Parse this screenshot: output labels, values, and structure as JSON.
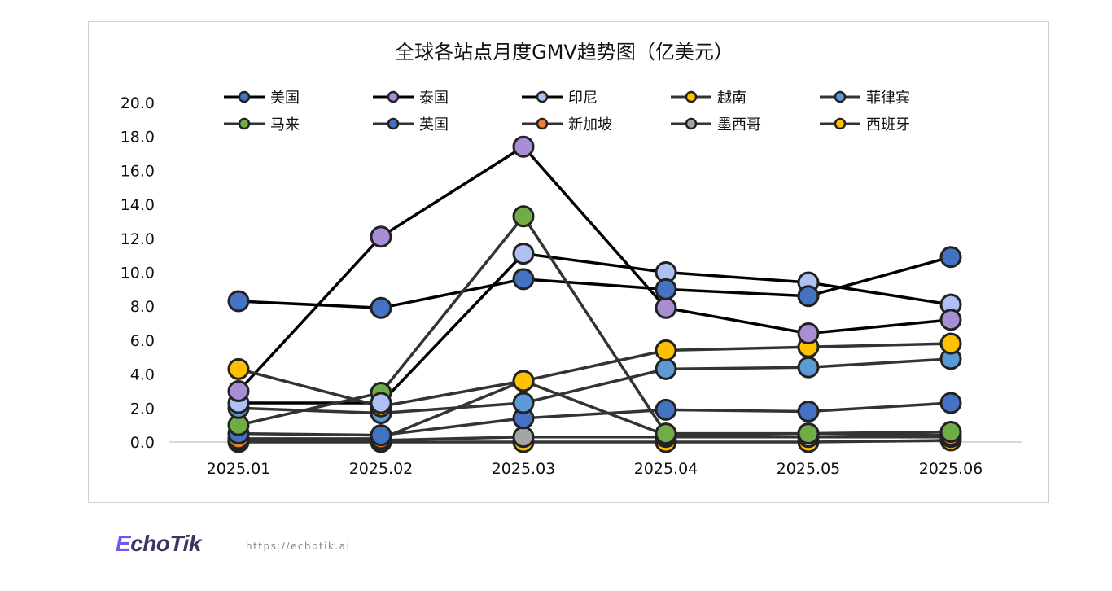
{
  "chart_data": {
    "type": "line",
    "title": "全球各站点月度GMV趋势图（亿美元）",
    "categories": [
      "2025.01",
      "2025.02",
      "2025.03",
      "2025.04",
      "2025.05",
      "2025.06"
    ],
    "ylim": [
      0,
      20
    ],
    "yticks": [
      "0.0",
      "2.0",
      "4.0",
      "6.0",
      "8.0",
      "10.0",
      "12.0",
      "14.0",
      "16.0",
      "18.0",
      "20.0"
    ],
    "grid": false,
    "legend_position": "top",
    "series": [
      {
        "name": "美国",
        "color": "#4472C4",
        "line": "#000000",
        "values": [
          8.3,
          7.9,
          9.6,
          9.0,
          8.6,
          10.9
        ]
      },
      {
        "name": "泰国",
        "color": "#A98ED6",
        "line": "#000000",
        "values": [
          3.0,
          12.1,
          17.4,
          7.9,
          6.4,
          7.2
        ]
      },
      {
        "name": "印尼",
        "color": "#AFC0F5",
        "line": "#000000",
        "values": [
          2.3,
          2.3,
          11.1,
          10.0,
          9.4,
          8.1
        ]
      },
      {
        "name": "越南",
        "color": "#FFC000",
        "line": "#333333",
        "values": [
          4.3,
          2.1,
          3.6,
          5.4,
          5.6,
          5.8
        ]
      },
      {
        "name": "菲律宾",
        "color": "#5B9BD5",
        "line": "#333333",
        "values": [
          2.0,
          1.7,
          2.3,
          4.3,
          4.4,
          4.9
        ]
      },
      {
        "name": "马来",
        "color": "#70AD47",
        "line": "#333333",
        "values": [
          1.0,
          2.9,
          13.3,
          0.5,
          0.5,
          0.6
        ]
      },
      {
        "name": "英国",
        "color": "#4472C4",
        "line": "#333333",
        "values": [
          0.5,
          0.4,
          1.4,
          1.9,
          1.8,
          2.3
        ]
      },
      {
        "name": "新加坡",
        "color": "#ED7D31",
        "line": "#333333",
        "values": [
          0.2,
          0.2,
          3.6,
          0.4,
          0.5,
          0.4
        ]
      },
      {
        "name": "墨西哥",
        "color": "#A5A5A5",
        "line": "#333333",
        "values": [
          0.1,
          0.1,
          0.3,
          0.3,
          0.3,
          0.3
        ]
      },
      {
        "name": "西班牙",
        "color": "#FFC000",
        "line": "#333333",
        "values": [
          0.0,
          0.0,
          0.0,
          0.0,
          0.0,
          0.1
        ]
      }
    ]
  },
  "footer": {
    "brand": "EchoTik",
    "url": "https://echotik.ai"
  }
}
